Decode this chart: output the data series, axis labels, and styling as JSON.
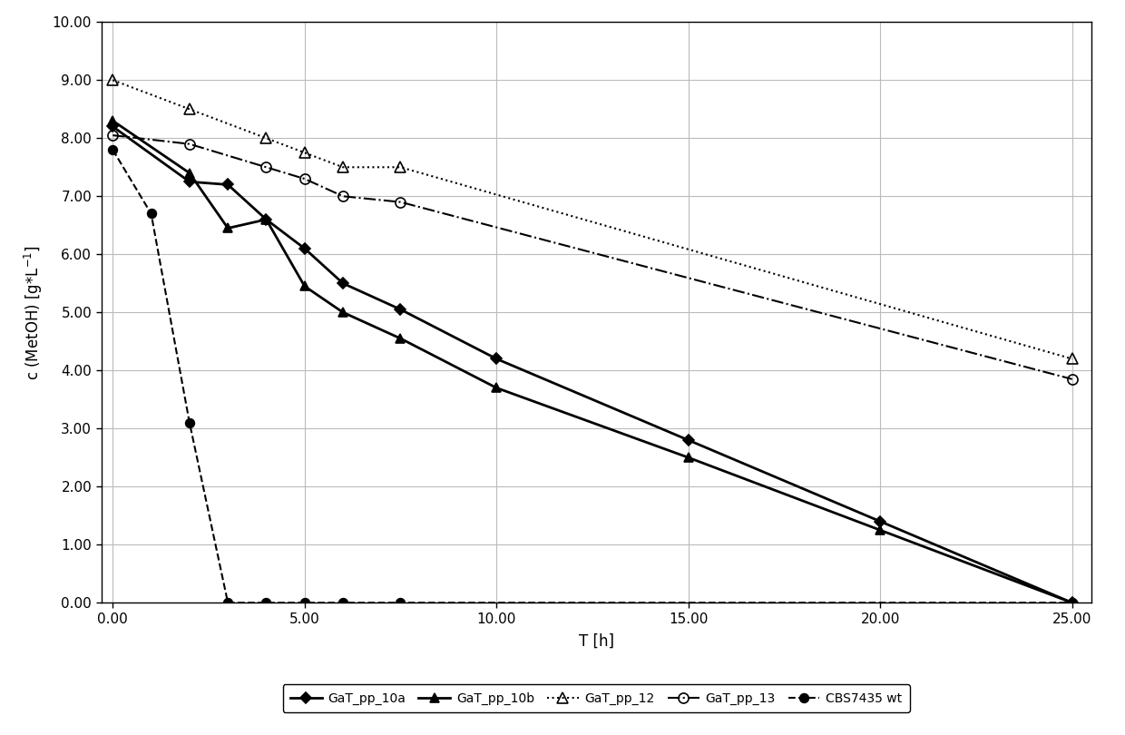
{
  "series": {
    "GaT_pp_10a": {
      "x": [
        0,
        2,
        3,
        4,
        5,
        6,
        7.5,
        10,
        15,
        20,
        25
      ],
      "y": [
        8.2,
        7.25,
        7.2,
        6.6,
        6.1,
        5.5,
        5.05,
        4.2,
        2.8,
        1.4,
        0.0
      ],
      "linestyle": "-",
      "marker": "D",
      "markersize": 6,
      "color": "#000000",
      "linewidth": 2.0,
      "fillstyle": "full"
    },
    "GaT_pp_10b": {
      "x": [
        0,
        2,
        3,
        4,
        5,
        6,
        7.5,
        10,
        15,
        20,
        25
      ],
      "y": [
        8.3,
        7.4,
        6.45,
        6.6,
        5.45,
        5.0,
        4.55,
        3.7,
        2.5,
        1.25,
        0.0
      ],
      "linestyle": "-",
      "marker": "^",
      "markersize": 7,
      "color": "#000000",
      "linewidth": 2.0,
      "fillstyle": "full"
    },
    "GaT_pp_12": {
      "x": [
        0,
        2,
        4,
        5,
        6,
        7.5,
        25
      ],
      "y": [
        9.0,
        8.5,
        8.0,
        7.75,
        7.5,
        7.5,
        4.2
      ],
      "linestyle": ":",
      "marker": "^",
      "markersize": 8,
      "color": "#000000",
      "linewidth": 1.5,
      "fillstyle": "none"
    },
    "GaT_pp_13": {
      "x": [
        0,
        2,
        4,
        5,
        6,
        7.5,
        25
      ],
      "y": [
        8.05,
        7.9,
        7.5,
        7.3,
        7.0,
        6.9,
        3.85
      ],
      "linestyle": "-.",
      "marker": "o",
      "markersize": 8,
      "color": "#000000",
      "linewidth": 1.5,
      "fillstyle": "none"
    },
    "CBS7435 wt": {
      "x": [
        0,
        1,
        2,
        3,
        4,
        5,
        6,
        7.5,
        25
      ],
      "y": [
        7.8,
        6.7,
        3.1,
        0.0,
        0.0,
        0.0,
        0.0,
        0.0,
        0.0
      ],
      "linestyle": "--",
      "marker": "o",
      "markersize": 7,
      "color": "#000000",
      "linewidth": 1.5,
      "fillstyle": "full"
    }
  },
  "xlabel": "T [h]",
  "ylabel": "c (MetOH) [g*L$^{-1}$]",
  "xlim": [
    -0.3,
    25.5
  ],
  "ylim": [
    0,
    10.0
  ],
  "xticks": [
    0.0,
    5.0,
    10.0,
    15.0,
    20.0,
    25.0
  ],
  "yticks": [
    0.0,
    1.0,
    2.0,
    3.0,
    4.0,
    5.0,
    6.0,
    7.0,
    8.0,
    9.0,
    10.0
  ],
  "xtick_labels": [
    "0.00",
    "5.00",
    "10.00",
    "15.00",
    "20.00",
    "25.00"
  ],
  "ytick_labels": [
    "0.00",
    "1.00",
    "2.00",
    "3.00",
    "4.00",
    "5.00",
    "6.00",
    "7.00",
    "8.00",
    "9.00",
    "10.00"
  ],
  "background_color": "#ffffff",
  "plot_bg_color": "#ffffff",
  "figsize": [
    12.4,
    8.1
  ],
  "dpi": 100
}
